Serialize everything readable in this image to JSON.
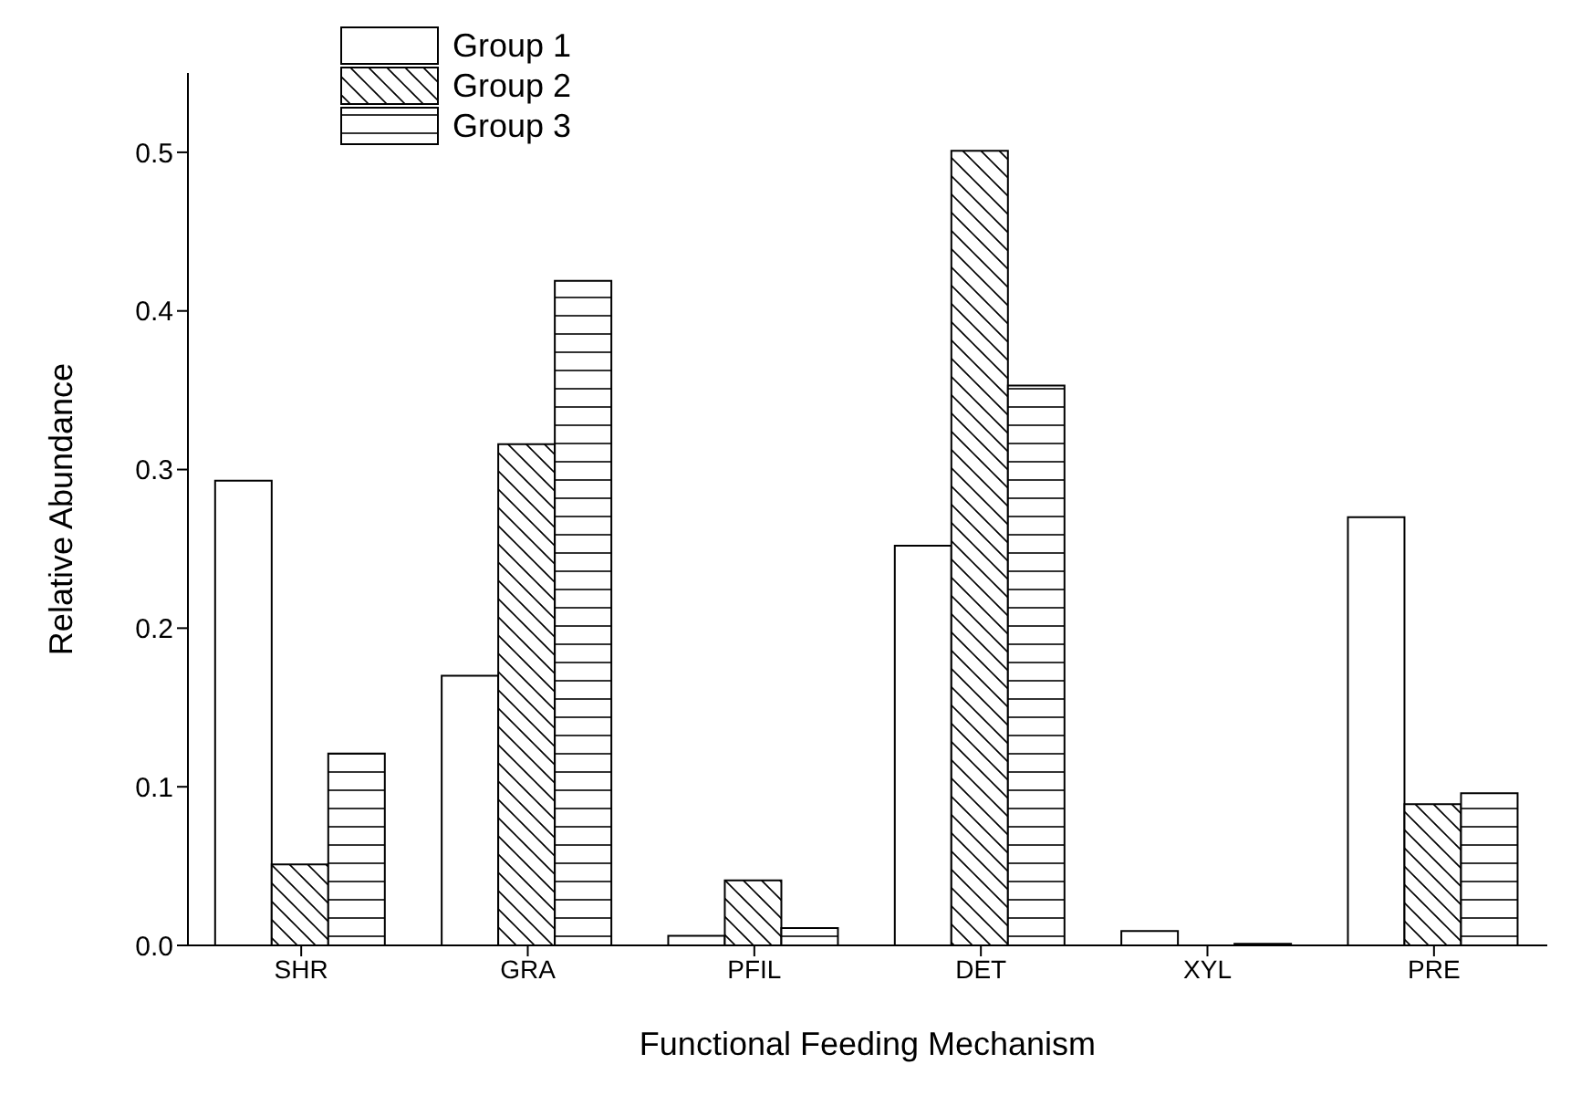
{
  "chart_data": {
    "type": "bar",
    "xlabel": "Functional Feeding Mechanism",
    "ylabel": "Relative Abundance",
    "categories": [
      "SHR",
      "GRA",
      "PFIL",
      "DET",
      "XYL",
      "PRE"
    ],
    "series": [
      {
        "name": "Group 1",
        "color": "#000000",
        "values": [
          0.293,
          0.17,
          0.006,
          0.252,
          0.009,
          0.27
        ]
      },
      {
        "name": "Group 2",
        "color": "#000000",
        "values": [
          0.051,
          0.316,
          0.041,
          0.501,
          0,
          0.089
        ]
      },
      {
        "name": "Group 3",
        "color": "#000000",
        "values": [
          0.121,
          0.419,
          0.011,
          0.353,
          0.001,
          0.096
        ]
      }
    ],
    "ylim": [
      0,
      0.55
    ],
    "yticks": [
      {
        "value": 0,
        "label": "0.0"
      },
      {
        "value": 0.1,
        "label": "0.1"
      },
      {
        "value": 0.2,
        "label": "0.2"
      },
      {
        "value": 0.3,
        "label": "0.3"
      },
      {
        "value": 0.4,
        "label": "0.4"
      },
      {
        "value": 0.5,
        "label": "0.5"
      }
    ],
    "grid": false,
    "legend": "top left"
  }
}
